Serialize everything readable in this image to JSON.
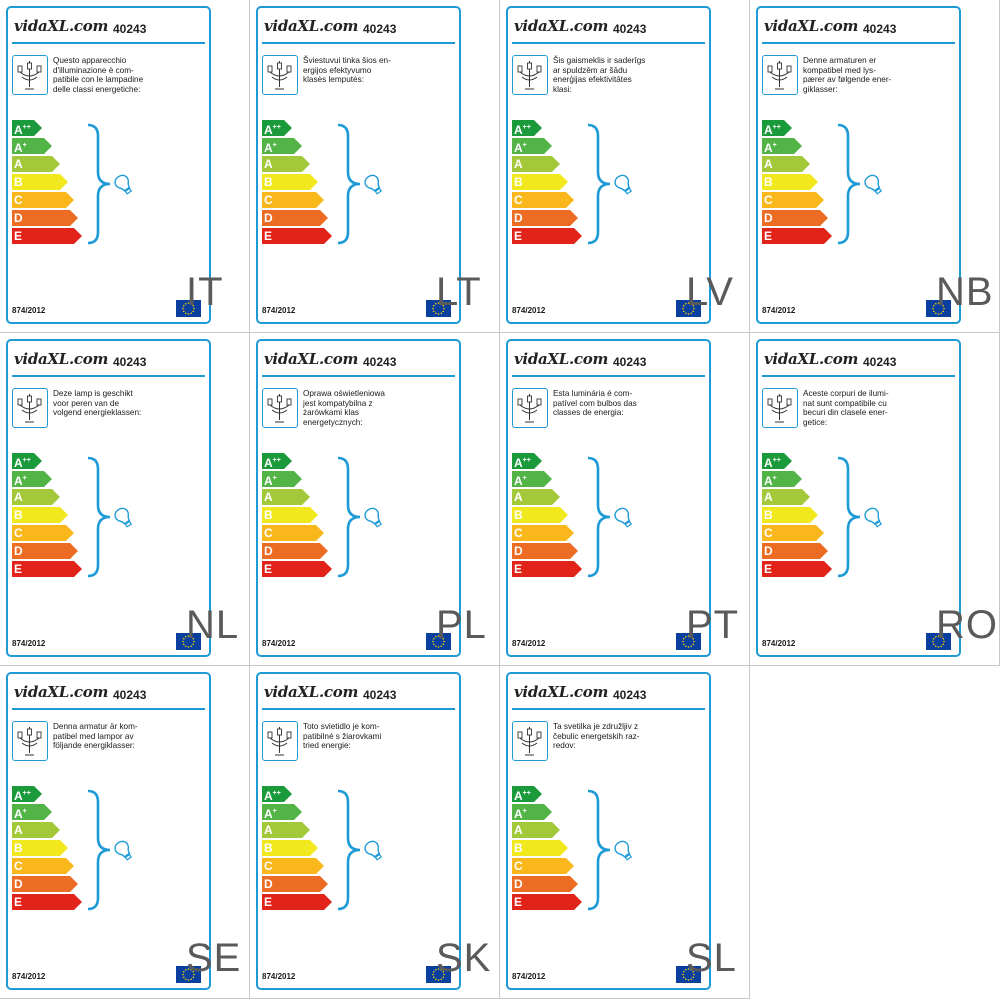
{
  "brand": {
    "name": "vidaXL.com"
  },
  "model": "40243",
  "regulation": "874/2012",
  "energy_classes": [
    {
      "base": "A",
      "sup": "++",
      "color": "#1a9a3b"
    },
    {
      "base": "A",
      "sup": "+",
      "color": "#52b447"
    },
    {
      "base": "A",
      "sup": "",
      "color": "#a3c93a"
    },
    {
      "base": "B",
      "sup": "",
      "color": "#f1e81e"
    },
    {
      "base": "C",
      "sup": "",
      "color": "#f9b71c"
    },
    {
      "base": "D",
      "sup": "",
      "color": "#ec6c23"
    },
    {
      "base": "E",
      "sup": "",
      "color": "#e2231a"
    }
  ],
  "accent_color": "#1e9bd7",
  "icons": [
    "chandelier-icon",
    "bulb-icon",
    "eu-flag-icon"
  ],
  "labels": [
    {
      "country": "IT",
      "text": "Questo apparecchio\nd'illuminazione è com-\npatibile con le lampadine\ndelle classi energetiche:"
    },
    {
      "country": "LT",
      "text": "Šviestuvui tinka šios en-\nergijos efektyvumo\nklasės lemputės:"
    },
    {
      "country": "LV",
      "text": "Šis gaismeklis ir saderīgs\nar spuldzēm ar šādu\nenerģijas efektivitātes\nklasi:"
    },
    {
      "country": "NB",
      "text": "Denne armaturen er\nkompatibel med lys-\npærer av følgende ener-\ngiklasser:"
    },
    {
      "country": "NL",
      "text": "Deze lamp is geschikt\nvoor peren van de\nvolgend energieklassen:"
    },
    {
      "country": "PL",
      "text": "Oprawa oświetleniowa\njest kompatybilna z\nżarówkami klas\nenergetycznych:"
    },
    {
      "country": "PT",
      "text": "Esta luminária é com-\npatível com bulbos das\nclasses de energia:"
    },
    {
      "country": "RO",
      "text": "Aceste corpuri de ilumi-\nnat sunt compatibile cu\nbecuri din clasele ener-\ngetice:"
    },
    {
      "country": "SE",
      "text": "Denna armatur är kom-\npatibel med lampor av\nföljande energiklasser:"
    },
    {
      "country": "SK",
      "text": "Toto svietidlo je kom-\npatibilné s žiarovkami\ntried energie:"
    },
    {
      "country": "SL",
      "text": "Ta svetilka je združljiv z\nčebulic energetskih raz-\nredov:"
    }
  ]
}
